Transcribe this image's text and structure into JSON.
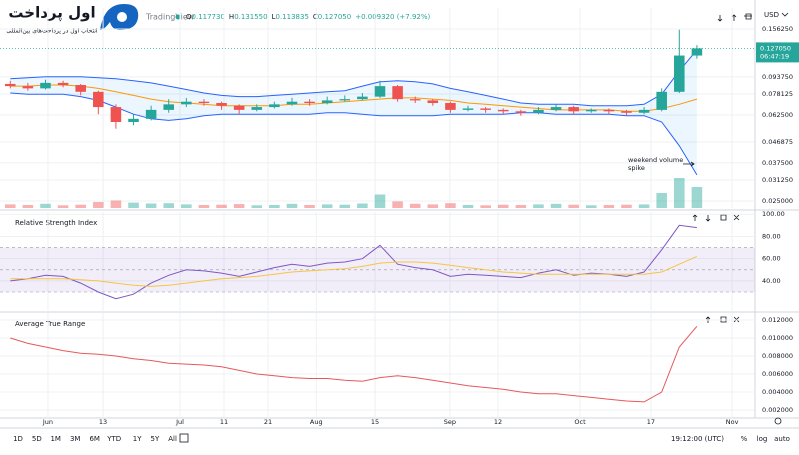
{
  "header": {
    "logo_title": "اول پرداخت",
    "logo_tagline": "انتخاب اول در پرداخت‌های بین‌المللی",
    "source": "TradingView",
    "ohlc": [
      {
        "key": "O",
        "value": "0.117730"
      },
      {
        "key": "H",
        "value": "0.131550"
      },
      {
        "key": "L",
        "value": "0.113835"
      },
      {
        "key": "C",
        "value": "0.127050"
      }
    ],
    "change": "+0.009320 (+7.92%)",
    "currency": "USD"
  },
  "chart_data": [
    {
      "type": "candlestick",
      "log": true,
      "ylim": [
        0.0232,
        0.1954
      ],
      "xlim": [
        -0.3,
        42.3
      ],
      "yticks": [
        {
          "value": 0.15625,
          "label": "0.156250"
        },
        {
          "value": 0.09375,
          "label": "0.093750"
        },
        0.078125,
        {
          "value": 0.0625,
          "label": "0.062500"
        },
        0.046875,
        {
          "value": 0.0375,
          "label": "0.037500"
        },
        {
          "value": 0.03125,
          "label": "0.031250"
        },
        {
          "value": 0.025,
          "label": "0.025000"
        }
      ],
      "up_color": "#26a69a",
      "down_color": "#ef5350",
      "candles": [
        [
          0.087,
          0.09,
          0.083,
          0.085
        ],
        [
          0.085,
          0.088,
          0.081,
          0.083
        ],
        [
          0.083,
          0.091,
          0.082,
          0.088
        ],
        [
          0.088,
          0.09,
          0.084,
          0.086
        ],
        [
          0.086,
          0.087,
          0.077,
          0.08
        ],
        [
          0.08,
          0.081,
          0.063,
          0.068
        ],
        [
          0.068,
          0.07,
          0.054,
          0.058
        ],
        [
          0.058,
          0.063,
          0.056,
          0.06
        ],
        [
          0.06,
          0.069,
          0.059,
          0.066
        ],
        [
          0.066,
          0.074,
          0.064,
          0.07
        ],
        [
          0.07,
          0.075,
          0.068,
          0.072
        ],
        [
          0.072,
          0.074,
          0.069,
          0.071
        ],
        [
          0.071,
          0.072,
          0.066,
          0.069
        ],
        [
          0.069,
          0.07,
          0.063,
          0.066
        ],
        [
          0.066,
          0.07,
          0.065,
          0.068
        ],
        [
          0.068,
          0.072,
          0.067,
          0.07
        ],
        [
          0.07,
          0.075,
          0.069,
          0.072
        ],
        [
          0.072,
          0.074,
          0.069,
          0.071
        ],
        [
          0.071,
          0.076,
          0.07,
          0.073
        ],
        [
          0.073,
          0.077,
          0.072,
          0.074
        ],
        [
          0.074,
          0.079,
          0.073,
          0.076
        ],
        [
          0.076,
          0.09,
          0.075,
          0.085
        ],
        [
          0.085,
          0.086,
          0.072,
          0.074
        ],
        [
          0.074,
          0.076,
          0.071,
          0.073
        ],
        [
          0.073,
          0.074,
          0.069,
          0.071
        ],
        [
          0.071,
          0.072,
          0.064,
          0.066
        ],
        [
          0.066,
          0.069,
          0.065,
          0.067
        ],
        [
          0.067,
          0.068,
          0.064,
          0.066
        ],
        [
          0.066,
          0.067,
          0.063,
          0.065
        ],
        [
          0.065,
          0.066,
          0.062,
          0.064
        ],
        [
          0.064,
          0.068,
          0.063,
          0.066
        ],
        [
          0.066,
          0.07,
          0.065,
          0.068
        ],
        [
          0.068,
          0.069,
          0.063,
          0.065
        ],
        [
          0.065,
          0.067,
          0.064,
          0.066
        ],
        [
          0.066,
          0.067,
          0.063,
          0.065
        ],
        [
          0.065,
          0.066,
          0.062,
          0.064
        ],
        [
          0.064,
          0.068,
          0.063,
          0.066
        ],
        [
          0.066,
          0.083,
          0.065,
          0.08
        ],
        [
          0.08,
          0.155,
          0.079,
          0.11773
        ],
        [
          0.11773,
          0.13155,
          0.113835,
          0.12705
        ]
      ],
      "volume": [
        12,
        10,
        14,
        9,
        11,
        20,
        25,
        18,
        15,
        16,
        12,
        10,
        11,
        13,
        9,
        10,
        14,
        10,
        12,
        11,
        15,
        45,
        22,
        14,
        12,
        16,
        10,
        9,
        11,
        10,
        12,
        14,
        11,
        9,
        10,
        11,
        12,
        50,
        100,
        70
      ],
      "bollinger": {
        "line_color": "#2962ff",
        "basis_color": "#ff9800",
        "fill": "rgba(33,150,243,0.09)",
        "upper": [
          0.092,
          0.093,
          0.094,
          0.094,
          0.094,
          0.093,
          0.092,
          0.09,
          0.088,
          0.085,
          0.082,
          0.079,
          0.077,
          0.076,
          0.076,
          0.077,
          0.078,
          0.079,
          0.08,
          0.081,
          0.085,
          0.089,
          0.09,
          0.089,
          0.087,
          0.083,
          0.08,
          0.077,
          0.074,
          0.071,
          0.07,
          0.07,
          0.07,
          0.069,
          0.069,
          0.069,
          0.07,
          0.078,
          0.1,
          0.125
        ],
        "basis": [
          0.085,
          0.085,
          0.086,
          0.086,
          0.085,
          0.083,
          0.08,
          0.077,
          0.074,
          0.072,
          0.071,
          0.07,
          0.069,
          0.069,
          0.069,
          0.069,
          0.07,
          0.07,
          0.071,
          0.072,
          0.073,
          0.074,
          0.075,
          0.075,
          0.074,
          0.073,
          0.071,
          0.07,
          0.069,
          0.068,
          0.067,
          0.066,
          0.066,
          0.066,
          0.066,
          0.065,
          0.065,
          0.067,
          0.07,
          0.074
        ],
        "lower": [
          0.079,
          0.078,
          0.078,
          0.078,
          0.076,
          0.073,
          0.068,
          0.063,
          0.06,
          0.059,
          0.06,
          0.062,
          0.063,
          0.063,
          0.063,
          0.063,
          0.063,
          0.063,
          0.064,
          0.064,
          0.063,
          0.062,
          0.062,
          0.062,
          0.062,
          0.063,
          0.063,
          0.063,
          0.063,
          0.064,
          0.064,
          0.063,
          0.063,
          0.063,
          0.063,
          0.062,
          0.062,
          0.058,
          0.045,
          0.033
        ]
      },
      "current_price_label": "0.127050",
      "countdown": "06:47:19",
      "annotation": [
        "weekend volume",
        "spike"
      ]
    },
    {
      "type": "line",
      "title": "Relative Strength Index",
      "ylim": [
        12,
        102
      ],
      "yticks": [
        {
          "value": 100,
          "label": "100.00"
        },
        {
          "value": 80,
          "label": "80.00"
        },
        {
          "value": 60,
          "label": "60.00"
        },
        {
          "value": 40,
          "label": "40.00"
        }
      ],
      "levels": [
        70,
        50,
        30
      ],
      "band_color": "rgba(126,87,194,0.10)",
      "series": [
        {
          "color": "#7e57c2",
          "values": [
            40,
            42,
            45,
            44,
            38,
            30,
            24,
            28,
            38,
            45,
            50,
            49,
            47,
            44,
            48,
            52,
            55,
            53,
            56,
            57,
            60,
            72,
            55,
            52,
            50,
            44,
            46,
            45,
            44,
            43,
            47,
            50,
            45,
            47,
            46,
            44,
            48,
            68,
            90,
            88
          ]
        },
        {
          "color": "#f5c542",
          "values": [
            42,
            42,
            42,
            42,
            41,
            40,
            38,
            36,
            35,
            36,
            38,
            40,
            42,
            43,
            44,
            46,
            48,
            49,
            50,
            51,
            53,
            56,
            57,
            57,
            56,
            54,
            52,
            50,
            48,
            47,
            46,
            46,
            46,
            46,
            46,
            46,
            46,
            48,
            55,
            62
          ]
        }
      ]
    },
    {
      "type": "line",
      "title": "Average True Range",
      "ylim": [
        0.00111,
        0.01278
      ],
      "yticks": [
        {
          "value": 0.012,
          "label": "0.012000"
        },
        {
          "value": 0.01,
          "label": "0.010000"
        },
        {
          "value": 0.008,
          "label": "0.008000"
        },
        {
          "value": 0.006,
          "label": "0.006000"
        },
        {
          "value": 0.004,
          "label": "0.004000"
        },
        {
          "value": 0.002,
          "label": "0.002000"
        }
      ],
      "xticks": [
        {
          "value": 2.14,
          "label": "Jun"
        },
        {
          "value": 5.27,
          "label": "13"
        },
        {
          "value": 9.64,
          "label": "Jul"
        },
        {
          "value": 12.14,
          "label": "11"
        },
        {
          "value": 14.64,
          "label": "21"
        },
        {
          "value": 17.38,
          "label": "Aug"
        },
        {
          "value": 20.72,
          "label": "15"
        },
        {
          "value": 24.97,
          "label": "Sep"
        },
        {
          "value": 27.7,
          "label": "12"
        },
        {
          "value": 32.36,
          "label": "Oct"
        },
        {
          "value": 36.39,
          "label": "17"
        },
        {
          "value": 41.0,
          "label": "Nov"
        }
      ],
      "series": [
        {
          "color": "#e5595c",
          "values": [
            0.01,
            0.0094,
            0.009,
            0.0086,
            0.0083,
            0.0082,
            0.008,
            0.0077,
            0.0075,
            0.0072,
            0.0071,
            0.007,
            0.0068,
            0.0064,
            0.006,
            0.0058,
            0.0056,
            0.0055,
            0.0055,
            0.0053,
            0.0052,
            0.0056,
            0.0058,
            0.0056,
            0.0053,
            0.005,
            0.0047,
            0.0045,
            0.0043,
            0.004,
            0.0038,
            0.0038,
            0.0036,
            0.0034,
            0.0032,
            0.003,
            0.0029,
            0.004,
            0.009,
            0.0113
          ]
        }
      ]
    }
  ],
  "toolbar": {
    "intervals": [
      "1D",
      "5D",
      "1M",
      "3M",
      "6M",
      "YTD",
      "1Y",
      "5Y",
      "All"
    ],
    "time": "19:12:00 (UTC)",
    "options": [
      "%",
      "log",
      "auto"
    ]
  }
}
